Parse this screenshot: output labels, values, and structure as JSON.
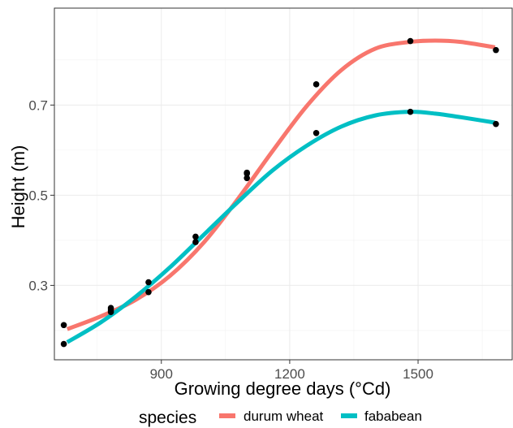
{
  "chart_data": {
    "type": "line",
    "title": "",
    "xlabel": "Growing degree days (°Cd)",
    "ylabel": "Height (m)",
    "xlim": [
      650,
      1720
    ],
    "ylim": [
      0.135,
      0.915
    ],
    "x_ticks": [
      900,
      1200,
      1500
    ],
    "x_tick_labels": [
      "900",
      "1200",
      "1500"
    ],
    "x_minor_ticks": [
      750,
      1050,
      1350,
      1650
    ],
    "y_ticks": [
      0.3,
      0.5,
      0.7
    ],
    "y_tick_labels": [
      "0.3",
      "0.5",
      "0.7"
    ],
    "y_minor_ticks": [
      0.2,
      0.4,
      0.6,
      0.8
    ],
    "grid": true,
    "legend": {
      "title": "species",
      "position": "bottom",
      "entries": [
        "durum wheat",
        "fababean"
      ]
    },
    "series": [
      {
        "name": "durum wheat",
        "color": "#F8766D",
        "points": [
          {
            "x": 672,
            "y": 0.212
          },
          {
            "x": 782,
            "y": 0.25
          },
          {
            "x": 782,
            "y": 0.245
          },
          {
            "x": 870,
            "y": 0.307
          },
          {
            "x": 980,
            "y": 0.408
          },
          {
            "x": 1100,
            "y": 0.55
          },
          {
            "x": 1262,
            "y": 0.746
          },
          {
            "x": 1482,
            "y": 0.842
          },
          {
            "x": 1682,
            "y": 0.822
          }
        ],
        "fit": {
          "x": [
            680,
            760,
            840,
            920,
            1000,
            1080,
            1160,
            1240,
            1320,
            1400,
            1480,
            1540,
            1600,
            1680
          ],
          "y": [
            0.203,
            0.232,
            0.268,
            0.321,
            0.396,
            0.493,
            0.598,
            0.698,
            0.777,
            0.825,
            0.84,
            0.843,
            0.84,
            0.828
          ]
        }
      },
      {
        "name": "fababean",
        "color": "#00BFC4",
        "points": [
          {
            "x": 672,
            "y": 0.17
          },
          {
            "x": 782,
            "y": 0.241
          },
          {
            "x": 870,
            "y": 0.285
          },
          {
            "x": 980,
            "y": 0.396
          },
          {
            "x": 1100,
            "y": 0.538
          },
          {
            "x": 1100,
            "y": 0.548
          },
          {
            "x": 1262,
            "y": 0.638
          },
          {
            "x": 1482,
            "y": 0.685
          },
          {
            "x": 1682,
            "y": 0.658
          }
        ],
        "fit": {
          "x": [
            680,
            760,
            840,
            920,
            1000,
            1080,
            1160,
            1240,
            1320,
            1400,
            1480,
            1540,
            1600,
            1680
          ],
          "y": [
            0.174,
            0.219,
            0.275,
            0.34,
            0.413,
            0.486,
            0.555,
            0.61,
            0.652,
            0.677,
            0.685,
            0.681,
            0.673,
            0.661
          ]
        }
      }
    ],
    "point_color": "#000000"
  }
}
